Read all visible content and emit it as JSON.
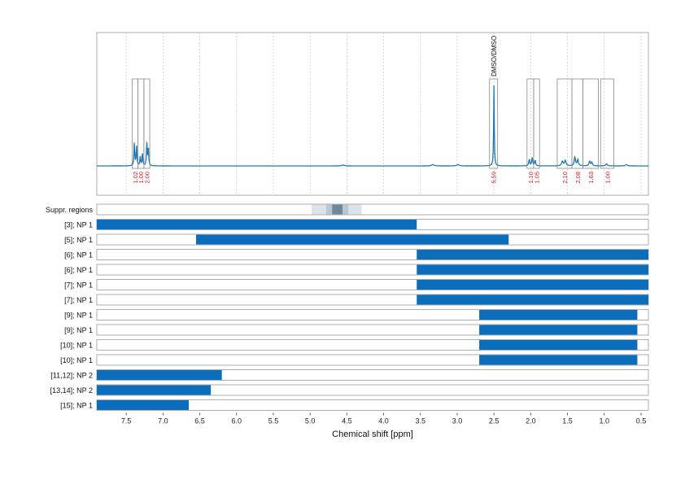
{
  "chart_data": {
    "type": "nmr-spectrum-with-range-bars",
    "xlabel": "Chemical shift [ppm]",
    "xlim": [
      7.9,
      0.4
    ],
    "xticks": [
      7.5,
      7.0,
      6.5,
      6.0,
      5.5,
      5.0,
      4.5,
      4.0,
      3.5,
      3.0,
      2.5,
      2.0,
      1.5,
      1.0,
      0.5
    ],
    "xtick_labels": [
      "7.5",
      "7.0",
      "6.5",
      "6.0",
      "5.5",
      "5.0",
      "4.5",
      "4.0",
      "3.5",
      "3.0",
      "2.5",
      "2.0",
      "1.5",
      "1.0",
      "0.5"
    ],
    "grid": true,
    "colors": {
      "spectrum": "#1f77b4",
      "bar": "#0a6ebd",
      "integral_text": "#e0141e",
      "suppr_light": "#dbe3ea",
      "suppr_mid": "#b8c7d3",
      "suppr_dark": "#6f8796"
    },
    "spectrum_peaks": [
      {
        "ppm": 7.39,
        "height": 0.26,
        "width": 0.006
      },
      {
        "ppm": 7.36,
        "height": 0.22,
        "width": 0.006
      },
      {
        "ppm": 7.31,
        "height": 0.1,
        "width": 0.006
      },
      {
        "ppm": 7.28,
        "height": 0.14,
        "width": 0.006
      },
      {
        "ppm": 7.22,
        "height": 0.25,
        "width": 0.006
      },
      {
        "ppm": 7.2,
        "height": 0.2,
        "width": 0.006
      },
      {
        "ppm": 4.55,
        "height": 0.01,
        "width": 0.02
      },
      {
        "ppm": 3.33,
        "height": 0.015,
        "width": 0.02
      },
      {
        "ppm": 2.99,
        "height": 0.015,
        "width": 0.02
      },
      {
        "ppm": 2.5,
        "height": 0.9,
        "width": 0.005
      },
      {
        "ppm": 2.02,
        "height": 0.07,
        "width": 0.008
      },
      {
        "ppm": 1.98,
        "height": 0.09,
        "width": 0.008
      },
      {
        "ppm": 1.94,
        "height": 0.06,
        "width": 0.008
      },
      {
        "ppm": 1.57,
        "height": 0.05,
        "width": 0.012
      },
      {
        "ppm": 1.53,
        "height": 0.06,
        "width": 0.012
      },
      {
        "ppm": 1.4,
        "height": 0.1,
        "width": 0.01
      },
      {
        "ppm": 1.36,
        "height": 0.07,
        "width": 0.01
      },
      {
        "ppm": 1.2,
        "height": 0.05,
        "width": 0.01
      },
      {
        "ppm": 1.17,
        "height": 0.04,
        "width": 0.01
      },
      {
        "ppm": 0.97,
        "height": 0.025,
        "width": 0.012
      },
      {
        "ppm": 0.7,
        "height": 0.015,
        "width": 0.015
      }
    ],
    "peak_annotations": [
      {
        "ppm": 2.5,
        "label": "DMSO/DMSO"
      }
    ],
    "integration_regions": [
      {
        "from": 7.42,
        "to": 7.34,
        "value": "1.02"
      },
      {
        "from": 7.34,
        "to": 7.26,
        "value": "1.00"
      },
      {
        "from": 7.26,
        "to": 7.18,
        "value": "2.00"
      },
      {
        "from": 2.56,
        "to": 2.45,
        "value": "5.59"
      },
      {
        "from": 2.05,
        "to": 1.96,
        "value": "1.10"
      },
      {
        "from": 1.96,
        "to": 1.88,
        "value": "1.05"
      },
      {
        "from": 1.64,
        "to": 1.44,
        "value": "2.10"
      },
      {
        "from": 1.44,
        "to": 1.29,
        "value": "2.08"
      },
      {
        "from": 1.29,
        "to": 1.08,
        "value": "1.63"
      },
      {
        "from": 1.05,
        "to": 0.87,
        "value": "1.00"
      }
    ],
    "suppressed_regions": {
      "label": "Suppr. regions",
      "bands": [
        {
          "from": 4.98,
          "to": 4.3,
          "shade": "light"
        },
        {
          "from": 4.78,
          "to": 4.48,
          "shade": "mid"
        },
        {
          "from": 4.7,
          "to": 4.56,
          "shade": "dark"
        }
      ]
    },
    "range_rows": [
      {
        "label": "[3]; NP 1",
        "from": 7.9,
        "to": 3.55
      },
      {
        "label": "[5]; NP 1",
        "from": 6.55,
        "to": 2.3
      },
      {
        "label": "[6]; NP 1",
        "from": 3.55,
        "to": 0.4
      },
      {
        "label": "[6]; NP 1",
        "from": 3.55,
        "to": 0.4
      },
      {
        "label": "[7]; NP 1",
        "from": 3.55,
        "to": 0.4
      },
      {
        "label": "[7]; NP 1",
        "from": 3.55,
        "to": 0.4
      },
      {
        "label": "[9]; NP 1",
        "from": 2.7,
        "to": 0.55
      },
      {
        "label": "[9]; NP 1",
        "from": 2.7,
        "to": 0.55
      },
      {
        "label": "[10]; NP 1",
        "from": 2.7,
        "to": 0.55
      },
      {
        "label": "[10]; NP 1",
        "from": 2.7,
        "to": 0.55
      },
      {
        "label": "[11,12]; NP 2",
        "from": 7.9,
        "to": 6.2
      },
      {
        "label": "[13,14]; NP 2",
        "from": 7.9,
        "to": 6.35
      },
      {
        "label": "[15]; NP 1",
        "from": 7.9,
        "to": 6.65
      }
    ]
  }
}
